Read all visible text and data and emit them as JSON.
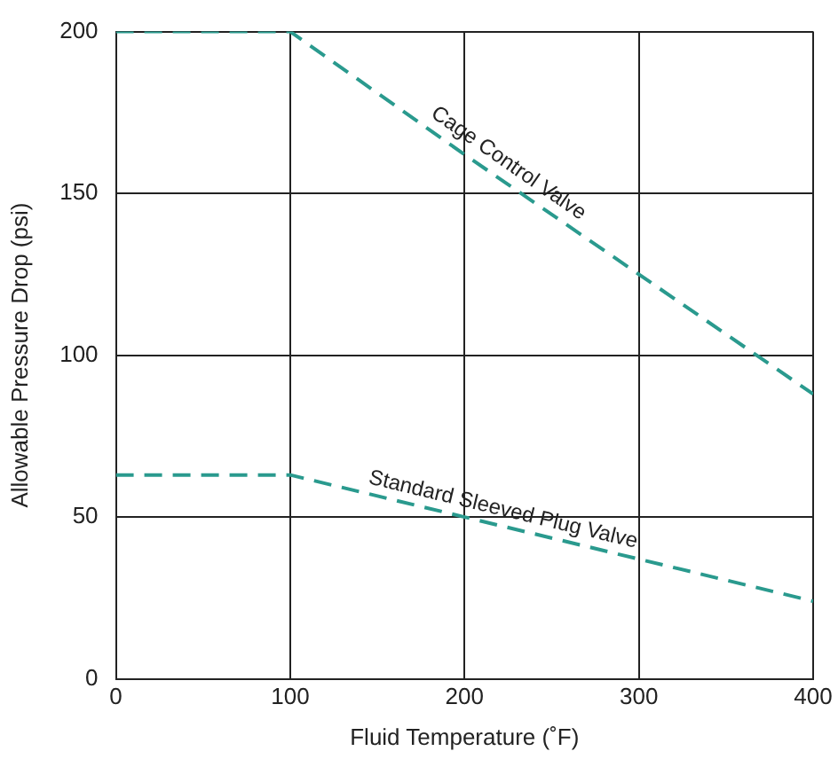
{
  "chart_data": {
    "type": "line",
    "xlabel": "Fluid Temperature (˚F)",
    "ylabel": "Allowable Pressure Drop (psi)",
    "xlim": [
      0,
      400
    ],
    "xticks": [
      0,
      100,
      200,
      300,
      400
    ],
    "ylim": [
      0,
      200
    ],
    "yticks": [
      0,
      50,
      100,
      150,
      200
    ],
    "grid": true,
    "legend": false,
    "marker": "none",
    "line_style": "dashed",
    "series": [
      {
        "name": "Cage Control Valve",
        "color": "#2a9a8e",
        "x": [
          0,
          100,
          200,
          300,
          400
        ],
        "values": [
          200,
          200,
          162,
          125,
          88
        ]
      },
      {
        "name": "Standard Sleeved Plug Valve",
        "color": "#2a9a8e",
        "x": [
          0,
          100,
          200,
          300,
          400
        ],
        "values": [
          63,
          63,
          50,
          37,
          24
        ]
      }
    ]
  }
}
